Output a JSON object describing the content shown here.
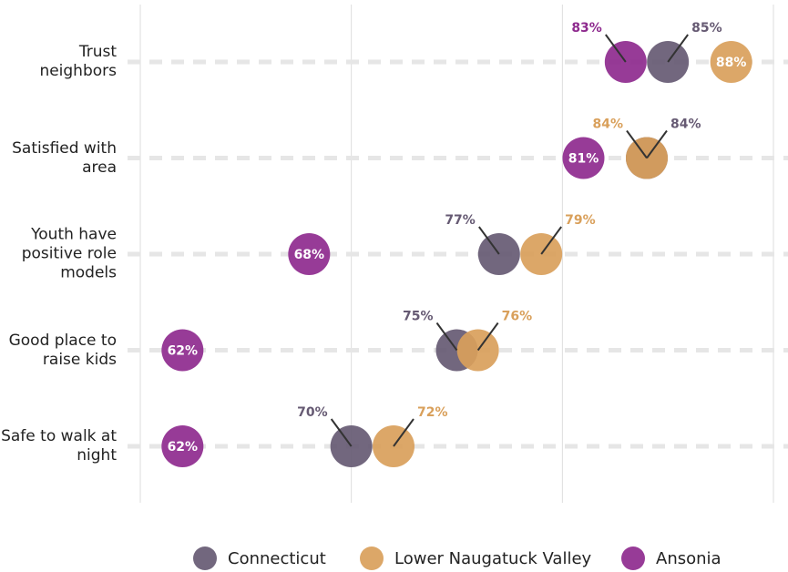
{
  "chart_data": {
    "type": "dot",
    "categories": [
      "Trust neighbors",
      "Satisfied with area",
      "Youth have positive role models",
      "Good place to raise kids",
      "Safe to walk at night"
    ],
    "series": [
      {
        "name": "Connecticut",
        "color": "#665a73",
        "values": [
          85,
          84,
          77,
          75,
          70
        ],
        "value_labels": [
          "85%",
          "84%",
          "77%",
          "75%",
          "70%"
        ]
      },
      {
        "name": "Lower Naugatuck Valley",
        "color": "#d9a05b",
        "values": [
          88,
          84,
          79,
          76,
          72
        ],
        "value_labels": [
          "88%",
          "84%",
          "79%",
          "76%",
          "72%"
        ]
      },
      {
        "name": "Ansonia",
        "color": "#8e2a8e",
        "values": [
          83,
          81,
          68,
          62,
          62
        ],
        "value_labels": [
          "83%",
          "81%",
          "68%",
          "62%",
          "62%"
        ]
      }
    ],
    "xlim": [
      60,
      90
    ],
    "xticks": [
      60,
      70,
      80,
      90
    ],
    "grid": true
  }
}
